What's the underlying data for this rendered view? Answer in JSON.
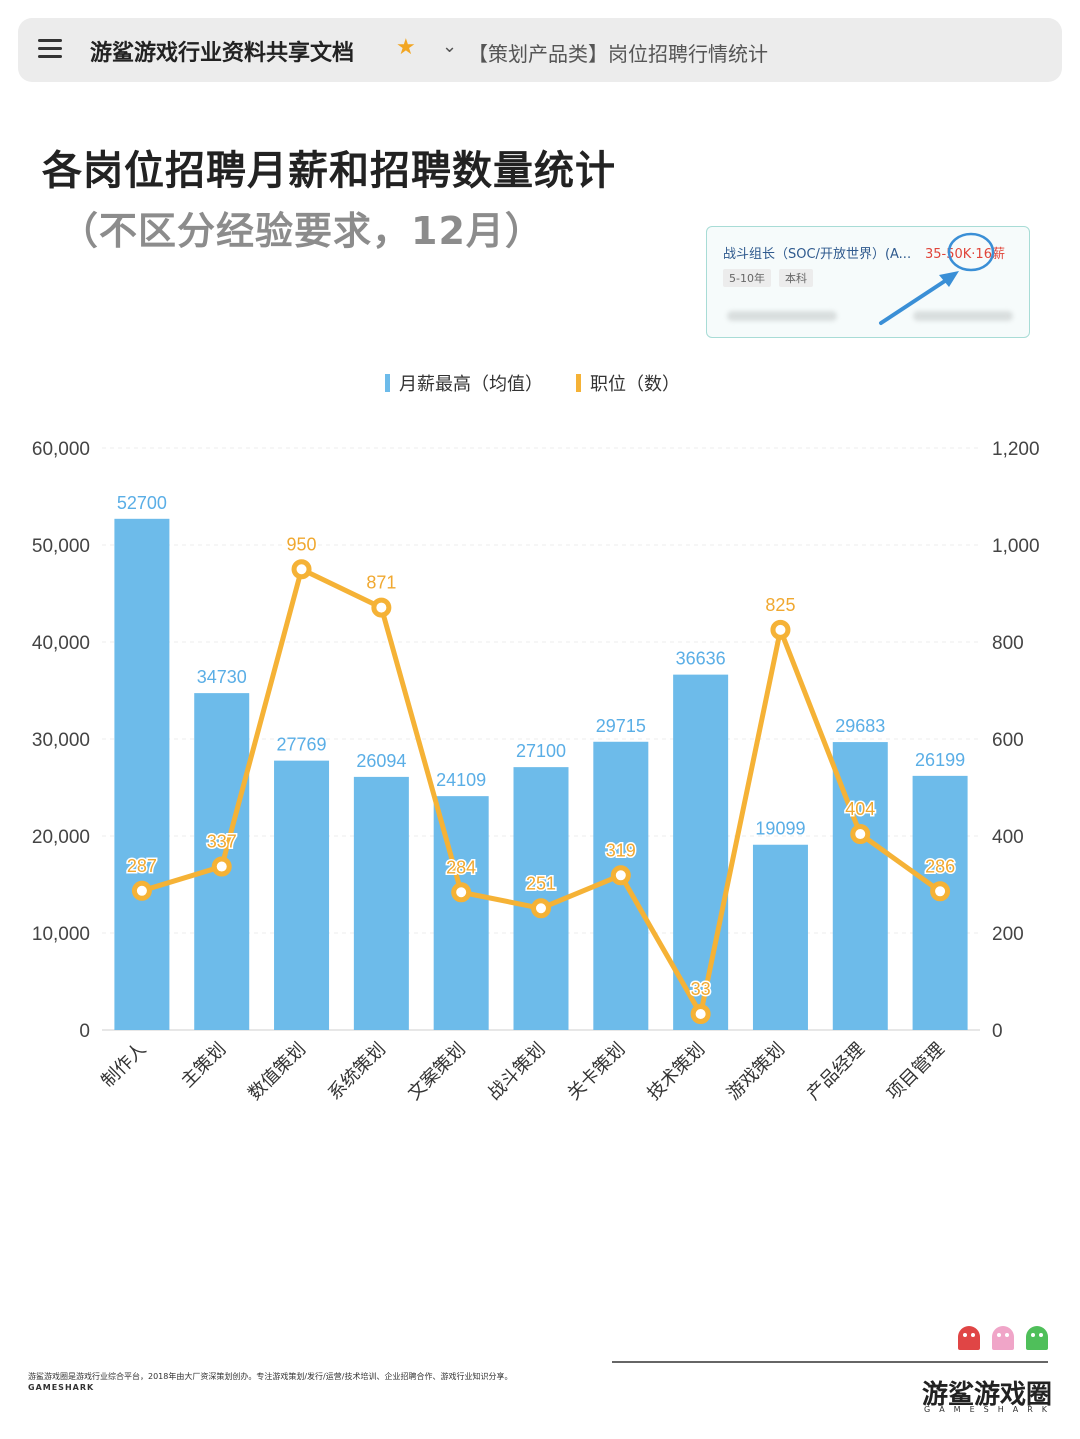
{
  "header": {
    "doc_title": "游鲨游戏行业资料共享文档",
    "page_name": "【策划产品类】岗位招聘行情统计"
  },
  "title": "各岗位招聘月薪和招聘数量统计",
  "subtitle": "（不区分经验要求，12月）",
  "sample_card": {
    "job": "战斗组长（SOC/开放世界）(A...",
    "salary": "35-50K·16薪",
    "tags": [
      "5-10年",
      "本科"
    ]
  },
  "chart_data": {
    "type": "bar",
    "categories": [
      "制作人",
      "主策划",
      "数值策划",
      "系统策划",
      "文案策划",
      "战斗策划",
      "关卡策划",
      "技术策划",
      "游戏策划",
      "产品经理",
      "项目管理"
    ],
    "series": [
      {
        "name": "月薪最高（均值）",
        "type": "bar",
        "axis": "left",
        "color": "#6dbbea",
        "label_color": "#5aaee6",
        "values": [
          52700,
          34730,
          27769,
          26094,
          24109,
          27100,
          29715,
          36636,
          19099,
          29683,
          26199
        ]
      },
      {
        "name": "职位（数）",
        "type": "line",
        "axis": "right",
        "color": "#f5b236",
        "label_color": "#f0a830",
        "values": [
          287,
          337,
          950,
          871,
          284,
          251,
          319,
          33,
          825,
          404,
          286
        ]
      }
    ],
    "y_left": {
      "min": 0,
      "max": 60000,
      "ticks": [
        "0",
        "10,000",
        "20,000",
        "30,000",
        "40,000",
        "50,000",
        "60,000"
      ]
    },
    "y_right": {
      "min": 0,
      "max": 1200,
      "ticks": [
        "0",
        "200",
        "400",
        "600",
        "800",
        "1,000",
        "1,200"
      ]
    },
    "legend_position": "top-center",
    "grid": true
  },
  "footer": {
    "description": "游鲨游戏圈是游戏行业综合平台，2018年由大厂资深策划创办。专注游戏策划/发行/运营/技术培训、企业招聘合作、游戏行业知识分享。",
    "mark": "GAMESHARK",
    "brand_name": "游鲨游戏圈",
    "brand_sub": "GAMESHARK"
  },
  "colors": {
    "bar": "#6dbbea",
    "line": "#f5b236",
    "star": "#f2a623",
    "salary_text": "#e0453a"
  },
  "icons": [
    "menu-icon",
    "star-icon",
    "chevron-down-icon"
  ]
}
